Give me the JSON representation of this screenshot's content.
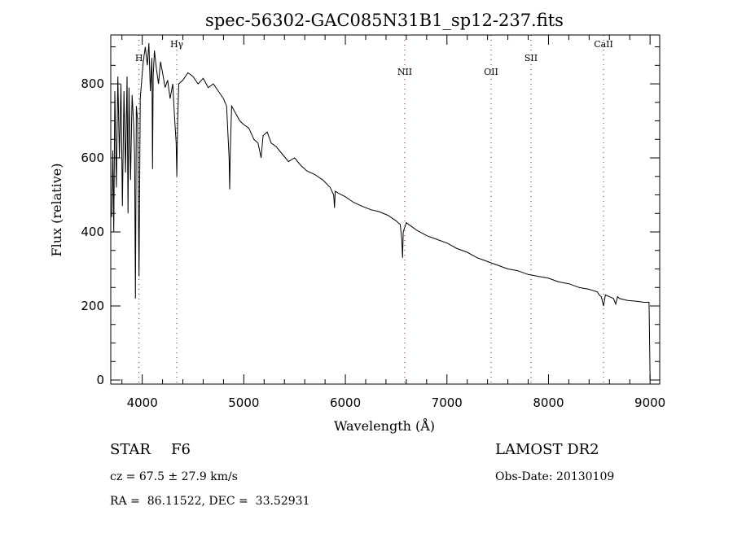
{
  "chart_data": {
    "type": "line",
    "title": "spec-56302-GAC085N31B1_sp12-237.fits",
    "xlabel": "Wavelength (Å)",
    "ylabel": "Flux (relative)",
    "xlim": [
      3690,
      9095
    ],
    "ylim": [
      -11,
      932
    ],
    "xticks": [
      4000,
      5000,
      6000,
      7000,
      8000,
      9000
    ],
    "xtick_labels": [
      "4000",
      "5000",
      "6000",
      "7000",
      "8000",
      "9000"
    ],
    "yticks": [
      0,
      200,
      400,
      600,
      800
    ],
    "ytick_labels": [
      "0",
      "200",
      "400",
      "600",
      "800"
    ],
    "x_minor_step": 200,
    "y_minor_step": 50,
    "grid": false,
    "line_color": "#000000",
    "marker_color": "#8b0000",
    "series": [
      {
        "name": "spectrum",
        "x": [
          3700,
          3710,
          3720,
          3730,
          3745,
          3760,
          3775,
          3790,
          3805,
          3820,
          3835,
          3850,
          3860,
          3870,
          3885,
          3900,
          3915,
          3925,
          3933,
          3942,
          3955,
          3968,
          3980,
          3995,
          4010,
          4030,
          4050,
          4065,
          4080,
          4095,
          4101,
          4108,
          4120,
          4140,
          4160,
          4180,
          4200,
          4225,
          4250,
          4275,
          4300,
          4320,
          4334,
          4340,
          4348,
          4360,
          4400,
          4450,
          4500,
          4550,
          4600,
          4650,
          4700,
          4750,
          4800,
          4830,
          4855,
          4861,
          4867,
          4880,
          4920,
          4960,
          5000,
          5050,
          5100,
          5140,
          5170,
          5190,
          5230,
          5270,
          5320,
          5380,
          5440,
          5500,
          5560,
          5620,
          5700,
          5780,
          5850,
          5885,
          5893,
          5900,
          5930,
          6000,
          6080,
          6160,
          6250,
          6330,
          6420,
          6500,
          6540,
          6555,
          6563,
          6570,
          6600,
          6700,
          6800,
          6900,
          7000,
          7100,
          7200,
          7300,
          7400,
          7500,
          7600,
          7700,
          7800,
          7900,
          8000,
          8100,
          8200,
          8300,
          8400,
          8480,
          8500,
          8520,
          8542,
          8560,
          8600,
          8640,
          8662,
          8680,
          8700,
          8780,
          8860,
          8940,
          8980,
          8990,
          8995,
          9000
        ],
        "y": [
          440,
          620,
          400,
          780,
          520,
          820,
          600,
          800,
          470,
          780,
          560,
          820,
          450,
          790,
          540,
          770,
          690,
          600,
          220,
          740,
          700,
          280,
          760,
          810,
          860,
          900,
          850,
          910,
          780,
          870,
          570,
          820,
          890,
          840,
          800,
          860,
          830,
          790,
          810,
          760,
          800,
          700,
          640,
          550,
          700,
          800,
          810,
          830,
          820,
          800,
          815,
          790,
          800,
          780,
          760,
          740,
          600,
          515,
          620,
          740,
          720,
          700,
          690,
          680,
          650,
          640,
          600,
          660,
          670,
          640,
          630,
          610,
          590,
          600,
          580,
          565,
          555,
          540,
          520,
          500,
          465,
          510,
          505,
          495,
          480,
          470,
          460,
          455,
          445,
          430,
          420,
          380,
          330,
          400,
          425,
          405,
          390,
          380,
          370,
          355,
          345,
          330,
          320,
          310,
          300,
          295,
          285,
          280,
          275,
          265,
          260,
          250,
          245,
          238,
          230,
          225,
          200,
          230,
          225,
          220,
          205,
          225,
          220,
          215,
          213,
          210,
          210,
          210,
          120,
          0
        ]
      }
    ],
    "line_markers": [
      {
        "label": "H",
        "x": 3968
      },
      {
        "label": "Hγ",
        "x": 4340
      },
      {
        "label": "NII",
        "x": 6585
      },
      {
        "label": "OII",
        "x": 7435
      },
      {
        "label": "SII",
        "x": 7828
      },
      {
        "label": "CaII",
        "x": 8542
      }
    ]
  },
  "info": {
    "object_class": "STAR",
    "subclass": "F6",
    "redshift": "cz = 67.5 ± 27.9 km/s",
    "coords": "RA =  86.11522, DEC =  33.52931",
    "survey": "LAMOST DR2",
    "obs_date": "Obs-Date: 20130109"
  }
}
